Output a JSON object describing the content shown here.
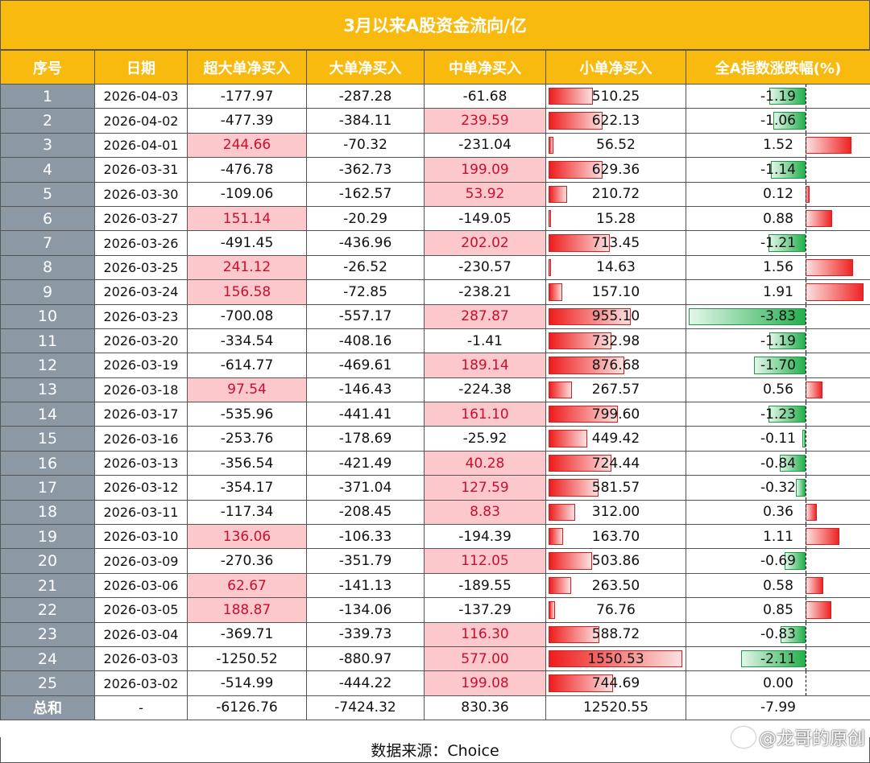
{
  "title": "3月以来A股资金流向/亿",
  "headers": [
    "序号",
    "日期",
    "超大单净买入",
    "大单净买入",
    "中单净买入",
    "小单净买入",
    "全A指数涨跌幅(%)"
  ],
  "rows": [
    {
      "idx": "1",
      "date": "2026-04-03",
      "super": "-177.97",
      "large": "-287.28",
      "mid": "-61.68",
      "small": "510.25",
      "pct": "-1.19"
    },
    {
      "idx": "2",
      "date": "2026-04-02",
      "super": "-477.39",
      "large": "-384.11",
      "mid": "239.59",
      "small": "622.13",
      "pct": "-1.06"
    },
    {
      "idx": "3",
      "date": "2026-04-01",
      "super": "244.66",
      "large": "-70.32",
      "mid": "-231.04",
      "small": "56.52",
      "pct": "1.52"
    },
    {
      "idx": "4",
      "date": "2026-03-31",
      "super": "-476.78",
      "large": "-362.73",
      "mid": "199.09",
      "small": "629.36",
      "pct": "-1.14"
    },
    {
      "idx": "5",
      "date": "2026-03-30",
      "super": "-109.06",
      "large": "-162.57",
      "mid": "53.92",
      "small": "210.72",
      "pct": "0.12"
    },
    {
      "idx": "6",
      "date": "2026-03-27",
      "super": "151.14",
      "large": "-20.29",
      "mid": "-149.05",
      "small": "15.28",
      "pct": "0.88"
    },
    {
      "idx": "7",
      "date": "2026-03-26",
      "super": "-491.45",
      "large": "-436.96",
      "mid": "202.02",
      "small": "713.45",
      "pct": "-1.21"
    },
    {
      "idx": "8",
      "date": "2026-03-25",
      "super": "241.12",
      "large": "-26.52",
      "mid": "-230.57",
      "small": "14.63",
      "pct": "1.56"
    },
    {
      "idx": "9",
      "date": "2026-03-24",
      "super": "156.58",
      "large": "-72.85",
      "mid": "-238.21",
      "small": "157.10",
      "pct": "1.91"
    },
    {
      "idx": "10",
      "date": "2026-03-23",
      "super": "-700.08",
      "large": "-557.17",
      "mid": "287.87",
      "small": "955.10",
      "pct": "-3.83"
    },
    {
      "idx": "11",
      "date": "2026-03-20",
      "super": "-334.54",
      "large": "-408.16",
      "mid": "-1.41",
      "small": "732.98",
      "pct": "-1.19"
    },
    {
      "idx": "12",
      "date": "2026-03-19",
      "super": "-614.77",
      "large": "-469.61",
      "mid": "189.14",
      "small": "876.68",
      "pct": "-1.70"
    },
    {
      "idx": "13",
      "date": "2026-03-18",
      "super": "97.54",
      "large": "-146.43",
      "mid": "-224.38",
      "small": "267.57",
      "pct": "0.56"
    },
    {
      "idx": "14",
      "date": "2026-03-17",
      "super": "-535.96",
      "large": "-441.41",
      "mid": "161.10",
      "small": "799.60",
      "pct": "-1.23"
    },
    {
      "idx": "15",
      "date": "2026-03-16",
      "super": "-253.76",
      "large": "-178.69",
      "mid": "-25.92",
      "small": "449.42",
      "pct": "-0.11"
    },
    {
      "idx": "16",
      "date": "2026-03-13",
      "super": "-356.54",
      "large": "-421.49",
      "mid": "40.28",
      "small": "724.44",
      "pct": "-0.84"
    },
    {
      "idx": "17",
      "date": "2026-03-12",
      "super": "-354.17",
      "large": "-371.04",
      "mid": "127.59",
      "small": "581.57",
      "pct": "-0.32"
    },
    {
      "idx": "18",
      "date": "2026-03-11",
      "super": "-117.34",
      "large": "-208.45",
      "mid": "8.83",
      "small": "312.00",
      "pct": "0.36"
    },
    {
      "idx": "19",
      "date": "2026-03-10",
      "super": "136.06",
      "large": "-106.33",
      "mid": "-194.39",
      "small": "163.70",
      "pct": "1.11"
    },
    {
      "idx": "20",
      "date": "2026-03-09",
      "super": "-270.36",
      "large": "-351.79",
      "mid": "112.05",
      "small": "503.86",
      "pct": "-0.69"
    },
    {
      "idx": "21",
      "date": "2026-03-06",
      "super": "62.67",
      "large": "-141.13",
      "mid": "-189.55",
      "small": "263.50",
      "pct": "0.58"
    },
    {
      "idx": "22",
      "date": "2026-03-05",
      "super": "188.87",
      "large": "-134.06",
      "mid": "-137.29",
      "small": "76.76",
      "pct": "0.85"
    },
    {
      "idx": "23",
      "date": "2026-03-04",
      "super": "-369.71",
      "large": "-339.73",
      "mid": "116.30",
      "small": "588.72",
      "pct": "-0.83"
    },
    {
      "idx": "24",
      "date": "2026-03-03",
      "super": "-1250.52",
      "large": "-880.97",
      "mid": "577.00",
      "small": "1550.53",
      "pct": "-2.11"
    },
    {
      "idx": "25",
      "date": "2026-03-02",
      "super": "-514.99",
      "large": "-444.22",
      "mid": "199.08",
      "small": "744.69",
      "pct": "0.00"
    }
  ],
  "total": {
    "label": "总和",
    "date": "-",
    "super": "-6126.76",
    "large": "-7424.32",
    "mid": "830.36",
    "small": "12520.55",
    "pct": "-7.99"
  },
  "source": "数据来源：Choice",
  "watermark": "@龙哥的原创",
  "colors": {
    "header": "#F9BA0F",
    "index_bg": "#8C98A4",
    "highlight": "#FCC8CC",
    "highlight_text": "#C8102E",
    "bar_red": "#EE1C1C",
    "bar_green": "#24B04E"
  }
}
